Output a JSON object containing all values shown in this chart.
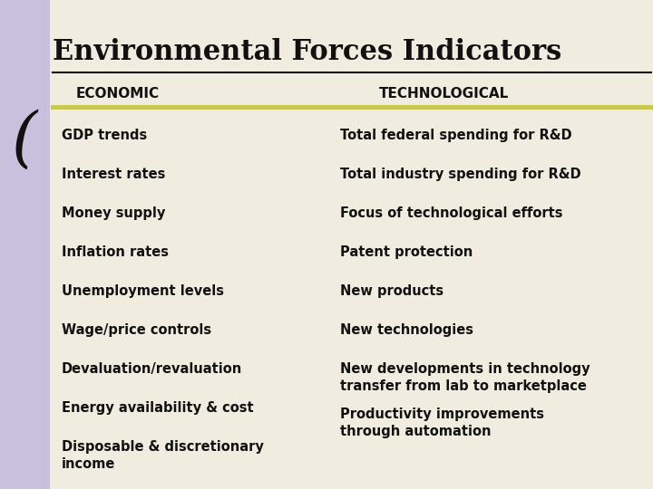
{
  "title": "Environmental Forces Indicators",
  "col1_header": "ECONOMIC",
  "col2_header": "TECHNOLOGICAL",
  "col1_items": [
    "GDP trends",
    "Interest rates",
    "Money supply",
    "Inflation rates",
    "Unemployment levels",
    "Wage/price controls",
    "Devaluation/revaluation",
    "Energy availability & cost",
    "Disposable & discretionary\nincome"
  ],
  "col2_items": [
    "Total federal spending for R&D",
    "Total industry spending for R&D",
    "Focus of technological efforts",
    "Patent protection",
    "New products",
    "New technologies",
    "New developments in technology\ntransfer from lab to marketplace",
    "Productivity improvements\nthrough automation"
  ],
  "bg_color": "#f0ece0",
  "left_bar_color": "#c8c0dc",
  "divider_line_color": "#c8c850",
  "header_line_color": "#111111",
  "title_font_size": 22,
  "header_font_size": 11,
  "item_font_size": 10.5,
  "title_font": "DejaVu Serif",
  "body_font": "DejaVu Sans"
}
